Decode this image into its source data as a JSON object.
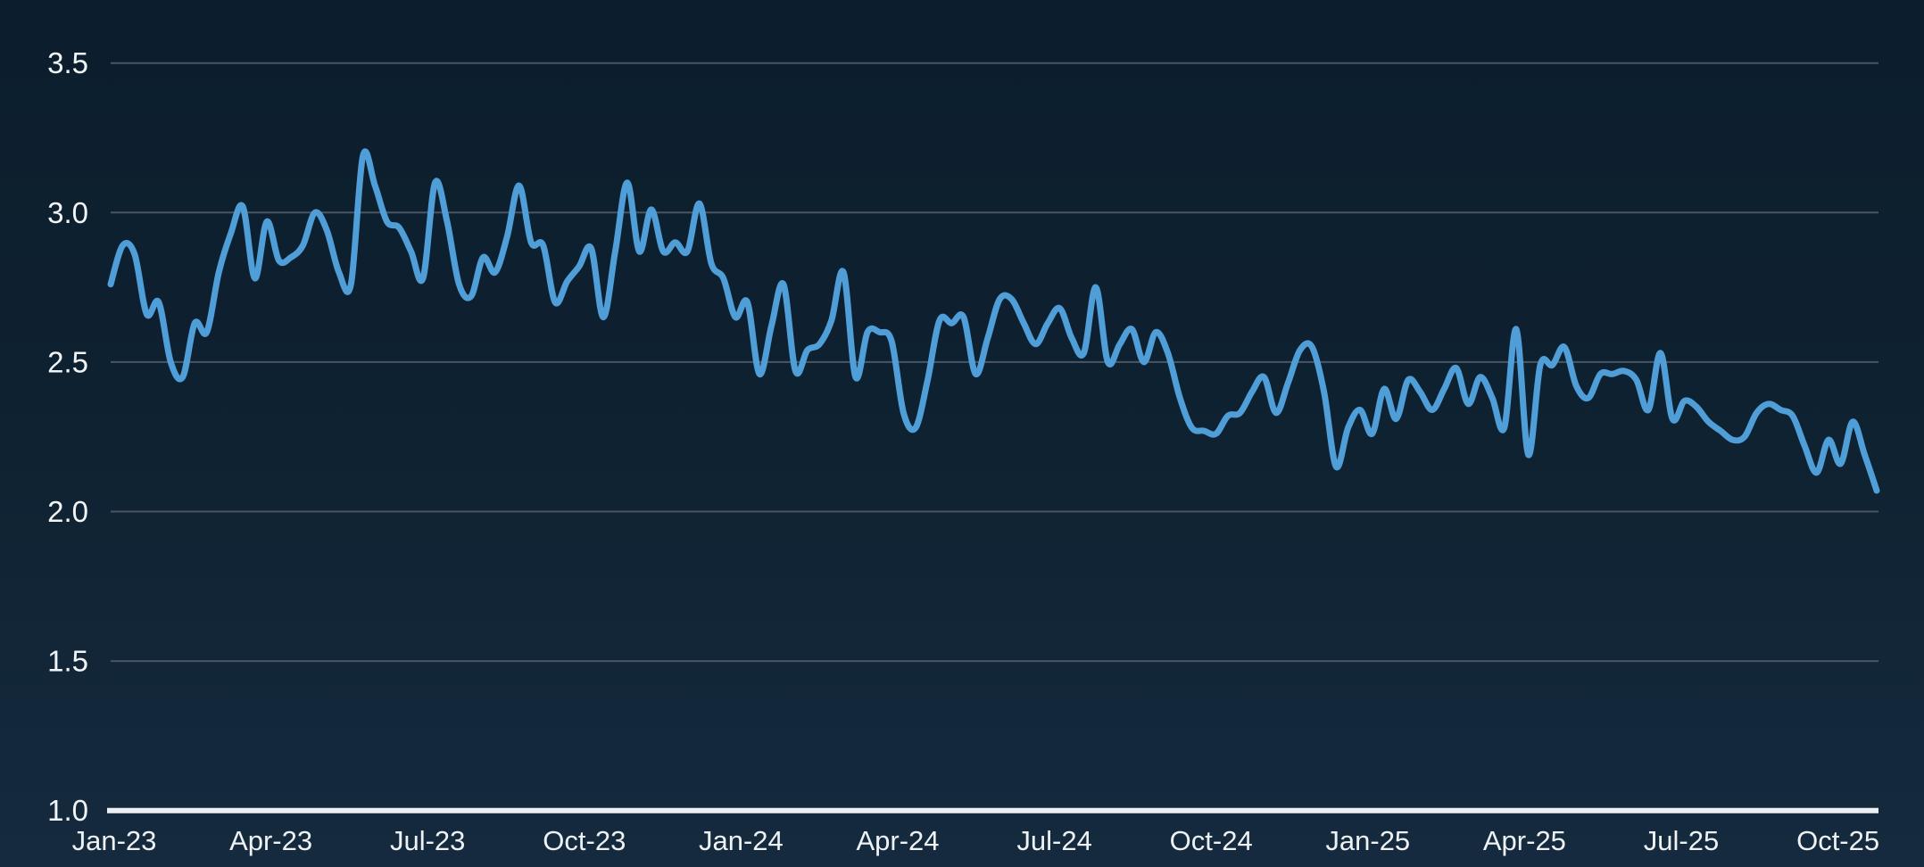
{
  "page": {
    "background_top": "#0c1e2d",
    "background_bottom": "#152a3e"
  },
  "chart_data": {
    "type": "line",
    "x_tick_labels": [
      "Jan-23",
      "Apr-23",
      "Jul-23",
      "Oct-23",
      "Jan-24",
      "Apr-24",
      "Jul-24",
      "Oct-24",
      "Jan-25",
      "Apr-25",
      "Jul-25",
      "Oct-25"
    ],
    "y_tick_labels": [
      "3.5",
      "3.0",
      "2.5",
      "2.0",
      "1.5",
      "1.0"
    ],
    "y_ticks": [
      3.5,
      3.0,
      2.5,
      2.0,
      1.5,
      1.0
    ],
    "ylim": [
      1.0,
      3.5
    ],
    "x_start": "Jan-23",
    "x_end": "Oct-25",
    "cadence": "weekly",
    "grid": "horizontal",
    "legend": "none",
    "series": [
      {
        "name": "value",
        "values": [
          2.76,
          2.89,
          2.86,
          2.66,
          2.7,
          2.5,
          2.45,
          2.63,
          2.6,
          2.8,
          2.93,
          3.02,
          2.78,
          2.97,
          2.84,
          2.85,
          2.89,
          3.0,
          2.94,
          2.8,
          2.76,
          3.19,
          3.09,
          2.97,
          2.95,
          2.87,
          2.78,
          3.1,
          2.97,
          2.76,
          2.72,
          2.85,
          2.8,
          2.92,
          3.09,
          2.9,
          2.89,
          2.7,
          2.77,
          2.82,
          2.88,
          2.65,
          2.87,
          3.1,
          2.87,
          3.01,
          2.87,
          2.9,
          2.87,
          3.03,
          2.83,
          2.78,
          2.65,
          2.7,
          2.46,
          2.62,
          2.76,
          2.47,
          2.54,
          2.56,
          2.64,
          2.8,
          2.45,
          2.6,
          2.6,
          2.57,
          2.33,
          2.28,
          2.44,
          2.64,
          2.63,
          2.65,
          2.46,
          2.58,
          2.71,
          2.71,
          2.63,
          2.56,
          2.63,
          2.68,
          2.58,
          2.53,
          2.75,
          2.5,
          2.56,
          2.61,
          2.5,
          2.6,
          2.53,
          2.38,
          2.28,
          2.27,
          2.26,
          2.32,
          2.33,
          2.4,
          2.45,
          2.33,
          2.43,
          2.54,
          2.55,
          2.4,
          2.15,
          2.28,
          2.34,
          2.26,
          2.41,
          2.31,
          2.44,
          2.4,
          2.34,
          2.41,
          2.48,
          2.36,
          2.45,
          2.38,
          2.28,
          2.61,
          2.19,
          2.49,
          2.49,
          2.55,
          2.42,
          2.38,
          2.46,
          2.46,
          2.47,
          2.44,
          2.34,
          2.53,
          2.31,
          2.37,
          2.35,
          2.3,
          2.27,
          2.24,
          2.25,
          2.33,
          2.36,
          2.34,
          2.32,
          2.22,
          2.13,
          2.24,
          2.16,
          2.3,
          2.19,
          2.07
        ]
      }
    ],
    "colors": {
      "line": "#4f9ed8",
      "gridline": "#4a5565",
      "axis_line": "#edf1f4",
      "tick_text": "#f2f5f7"
    }
  }
}
